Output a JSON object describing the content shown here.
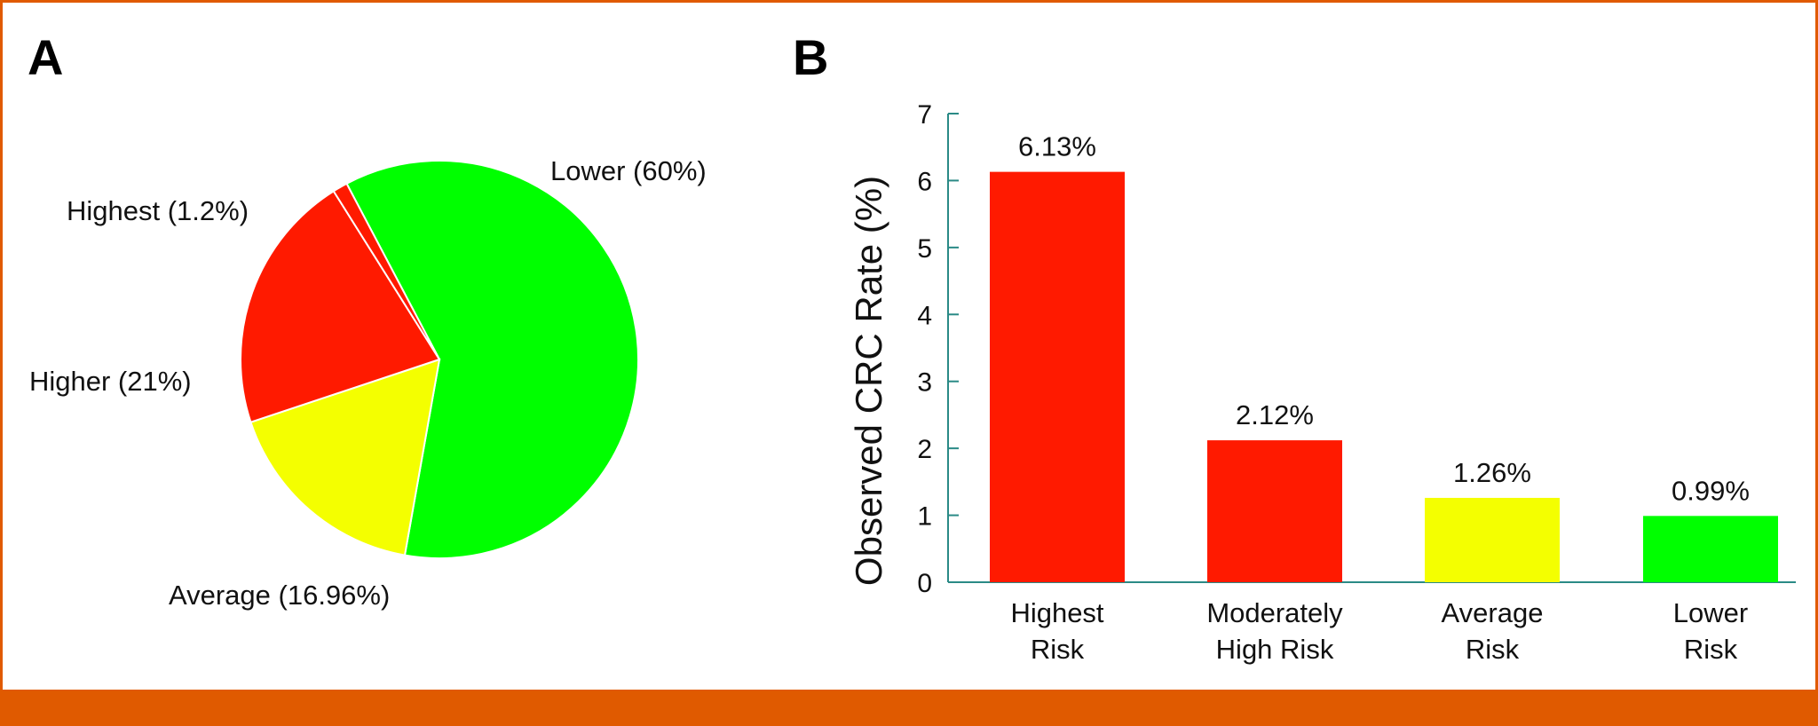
{
  "colors": {
    "border": "#e05a00",
    "red": "#ff1a00",
    "yellow": "#f4ff00",
    "green": "#00ff00",
    "axis": "#2a8a86"
  },
  "panels": {
    "a_label": "A",
    "b_label": "B"
  },
  "chart_data": [
    {
      "type": "pie",
      "panel": "A",
      "title": "",
      "slices": [
        {
          "label": "Lower (60%)",
          "value": 60,
          "color": "#00ff00"
        },
        {
          "label": "Average (16.96%)",
          "value": 16.96,
          "color": "#f4ff00"
        },
        {
          "label": "Higher (21%)",
          "value": 21,
          "color": "#ff1a00"
        },
        {
          "label": "Highest (1.2%)",
          "value": 1.2,
          "color": "#ff1a00"
        }
      ]
    },
    {
      "type": "bar",
      "panel": "B",
      "title": "",
      "categories": [
        [
          "Highest",
          "Risk"
        ],
        [
          "Moderately",
          "High Risk"
        ],
        [
          "Average",
          "Risk"
        ],
        [
          "Lower",
          "Risk"
        ]
      ],
      "values": [
        6.13,
        2.12,
        1.26,
        0.99
      ],
      "data_labels": [
        "6.13%",
        "2.12%",
        "1.26%",
        "0.99%"
      ],
      "colors": [
        "#ff1a00",
        "#ff1a00",
        "#f4ff00",
        "#00ff00"
      ],
      "xlabel": "",
      "ylabel": "Observed CRC Rate (%)",
      "ylim": [
        0,
        7
      ],
      "yticks": [
        0,
        1,
        2,
        3,
        4,
        5,
        6,
        7
      ],
      "grid": false
    }
  ]
}
